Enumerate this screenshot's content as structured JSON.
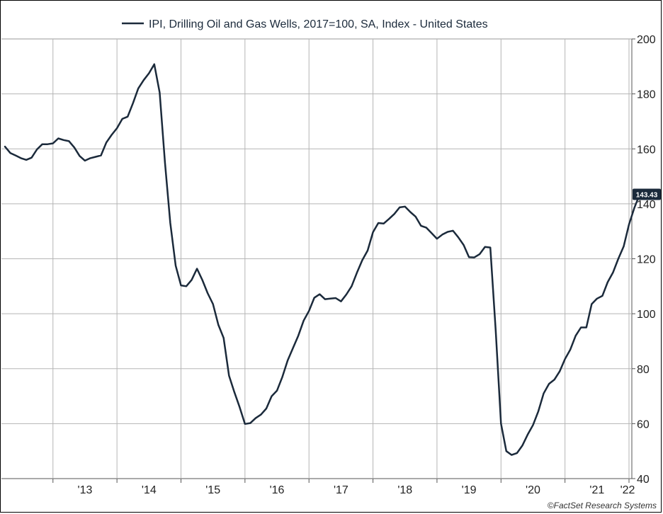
{
  "chart_data": {
    "type": "line",
    "legend": "IPI, Drilling Oil and Gas Wells, 2017=100, SA, Index - United States",
    "legend_placement": "top-center",
    "y_axis_side": "right",
    "ylim": [
      40,
      200
    ],
    "yticks": [
      40,
      60,
      80,
      100,
      120,
      140,
      160,
      180,
      200
    ],
    "x_start": "2012-04",
    "x_end": "2022-01",
    "xticks": [
      {
        "label": "'13",
        "date": "2013-07"
      },
      {
        "label": "'14",
        "date": "2014-07"
      },
      {
        "label": "'15",
        "date": "2015-07"
      },
      {
        "label": "'16",
        "date": "2016-07"
      },
      {
        "label": "'17",
        "date": "2017-07"
      },
      {
        "label": "'18",
        "date": "2018-07"
      },
      {
        "label": "'19",
        "date": "2019-07"
      },
      {
        "label": "'20",
        "date": "2020-07"
      },
      {
        "label": "'21",
        "date": "2021-07"
      },
      {
        "label": "'22",
        "date": "2022-07"
      }
    ],
    "grid": true,
    "series": [
      {
        "name": "IPI, Drilling Oil and Gas Wells, 2017=100, SA, Index - United States",
        "color": "#1b2a3b",
        "points": [
          [
            "2012-04",
            160.8
          ],
          [
            "2012-05",
            158.5
          ],
          [
            "2012-06",
            157.6
          ],
          [
            "2012-07",
            156.6
          ],
          [
            "2012-08",
            156.0
          ],
          [
            "2012-09",
            156.8
          ],
          [
            "2012-10",
            159.8
          ],
          [
            "2012-11",
            161.7
          ],
          [
            "2012-12",
            161.7
          ],
          [
            "2013-01",
            162.0
          ],
          [
            "2013-02",
            163.8
          ],
          [
            "2013-03",
            163.2
          ],
          [
            "2013-04",
            162.8
          ],
          [
            "2013-05",
            160.5
          ],
          [
            "2013-06",
            157.4
          ],
          [
            "2013-07",
            155.7
          ],
          [
            "2013-08",
            156.6
          ],
          [
            "2013-09",
            157.1
          ],
          [
            "2013-10",
            157.6
          ],
          [
            "2013-11",
            162.3
          ],
          [
            "2013-12",
            165.1
          ],
          [
            "2014-01",
            167.5
          ],
          [
            "2014-02",
            170.9
          ],
          [
            "2014-03",
            171.7
          ],
          [
            "2014-04",
            176.6
          ],
          [
            "2014-05",
            182.0
          ],
          [
            "2014-06",
            185.0
          ],
          [
            "2014-07",
            187.5
          ],
          [
            "2014-08",
            190.8
          ],
          [
            "2014-09",
            180.5
          ],
          [
            "2014-10",
            155.0
          ],
          [
            "2014-11",
            133.0
          ],
          [
            "2014-12",
            117.5
          ],
          [
            "2015-01",
            110.3
          ],
          [
            "2015-02",
            110.0
          ],
          [
            "2015-03",
            112.3
          ],
          [
            "2015-04",
            116.4
          ],
          [
            "2015-05",
            112.3
          ],
          [
            "2015-06",
            107.5
          ],
          [
            "2015-07",
            103.5
          ],
          [
            "2015-08",
            96.0
          ],
          [
            "2015-09",
            91.2
          ],
          [
            "2015-10",
            77.5
          ],
          [
            "2015-11",
            71.5
          ],
          [
            "2015-12",
            66.0
          ],
          [
            "2016-01",
            59.9
          ],
          [
            "2016-02",
            60.2
          ],
          [
            "2016-03",
            62.0
          ],
          [
            "2016-04",
            63.3
          ],
          [
            "2016-05",
            65.5
          ],
          [
            "2016-06",
            70.0
          ],
          [
            "2016-07",
            72.0
          ],
          [
            "2016-08",
            77.0
          ],
          [
            "2016-09",
            83.0
          ],
          [
            "2016-10",
            87.5
          ],
          [
            "2016-11",
            92.0
          ],
          [
            "2016-12",
            97.5
          ],
          [
            "2017-01",
            101.0
          ],
          [
            "2017-02",
            105.8
          ],
          [
            "2017-03",
            107.1
          ],
          [
            "2017-04",
            105.3
          ],
          [
            "2017-05",
            105.5
          ],
          [
            "2017-06",
            105.7
          ],
          [
            "2017-07",
            104.5
          ],
          [
            "2017-08",
            107.0
          ],
          [
            "2017-09",
            110.0
          ],
          [
            "2017-10",
            115.0
          ],
          [
            "2017-11",
            119.5
          ],
          [
            "2017-12",
            123.0
          ],
          [
            "2018-01",
            129.7
          ],
          [
            "2018-02",
            133.0
          ],
          [
            "2018-03",
            132.8
          ],
          [
            "2018-04",
            134.5
          ],
          [
            "2018-05",
            136.3
          ],
          [
            "2018-06",
            138.7
          ],
          [
            "2018-07",
            139.0
          ],
          [
            "2018-08",
            137.0
          ],
          [
            "2018-09",
            135.3
          ],
          [
            "2018-10",
            132.0
          ],
          [
            "2018-11",
            131.3
          ],
          [
            "2018-12",
            129.3
          ],
          [
            "2019-01",
            127.3
          ],
          [
            "2019-02",
            128.8
          ],
          [
            "2019-03",
            129.8
          ],
          [
            "2019-04",
            130.2
          ],
          [
            "2019-05",
            127.8
          ],
          [
            "2019-06",
            125.0
          ],
          [
            "2019-07",
            120.6
          ],
          [
            "2019-08",
            120.5
          ],
          [
            "2019-09",
            121.7
          ],
          [
            "2019-10",
            124.3
          ],
          [
            "2019-11",
            124.1
          ],
          [
            "2019-12",
            94.0
          ],
          [
            "2020-01",
            60.0
          ],
          [
            "2020-02",
            50.0
          ],
          [
            "2020-03",
            48.6
          ],
          [
            "2020-04",
            49.3
          ],
          [
            "2020-05",
            52.0
          ],
          [
            "2020-06",
            56.0
          ],
          [
            "2020-07",
            59.5
          ],
          [
            "2020-08",
            64.5
          ],
          [
            "2020-09",
            71.0
          ],
          [
            "2020-10",
            74.5
          ],
          [
            "2020-11",
            76.0
          ],
          [
            "2020-12",
            79.0
          ],
          [
            "2021-01",
            83.5
          ],
          [
            "2021-02",
            87.0
          ],
          [
            "2021-03",
            92.0
          ],
          [
            "2021-04",
            95.0
          ],
          [
            "2021-05",
            95.0
          ],
          [
            "2021-06",
            103.5
          ],
          [
            "2021-07",
            105.5
          ],
          [
            "2021-08",
            106.5
          ],
          [
            "2021-09",
            111.5
          ],
          [
            "2021-10",
            115.0
          ],
          [
            "2021-11",
            120.0
          ],
          [
            "2021-12",
            124.5
          ],
          [
            "2022-01",
            132.5
          ],
          [
            "2022-02",
            138.5
          ],
          [
            "2022-03",
            143.43
          ]
        ]
      }
    ],
    "last_value_label": "143.43",
    "last_value_color": "#1b2a3b"
  },
  "credit": "©FactSet Research Systems"
}
